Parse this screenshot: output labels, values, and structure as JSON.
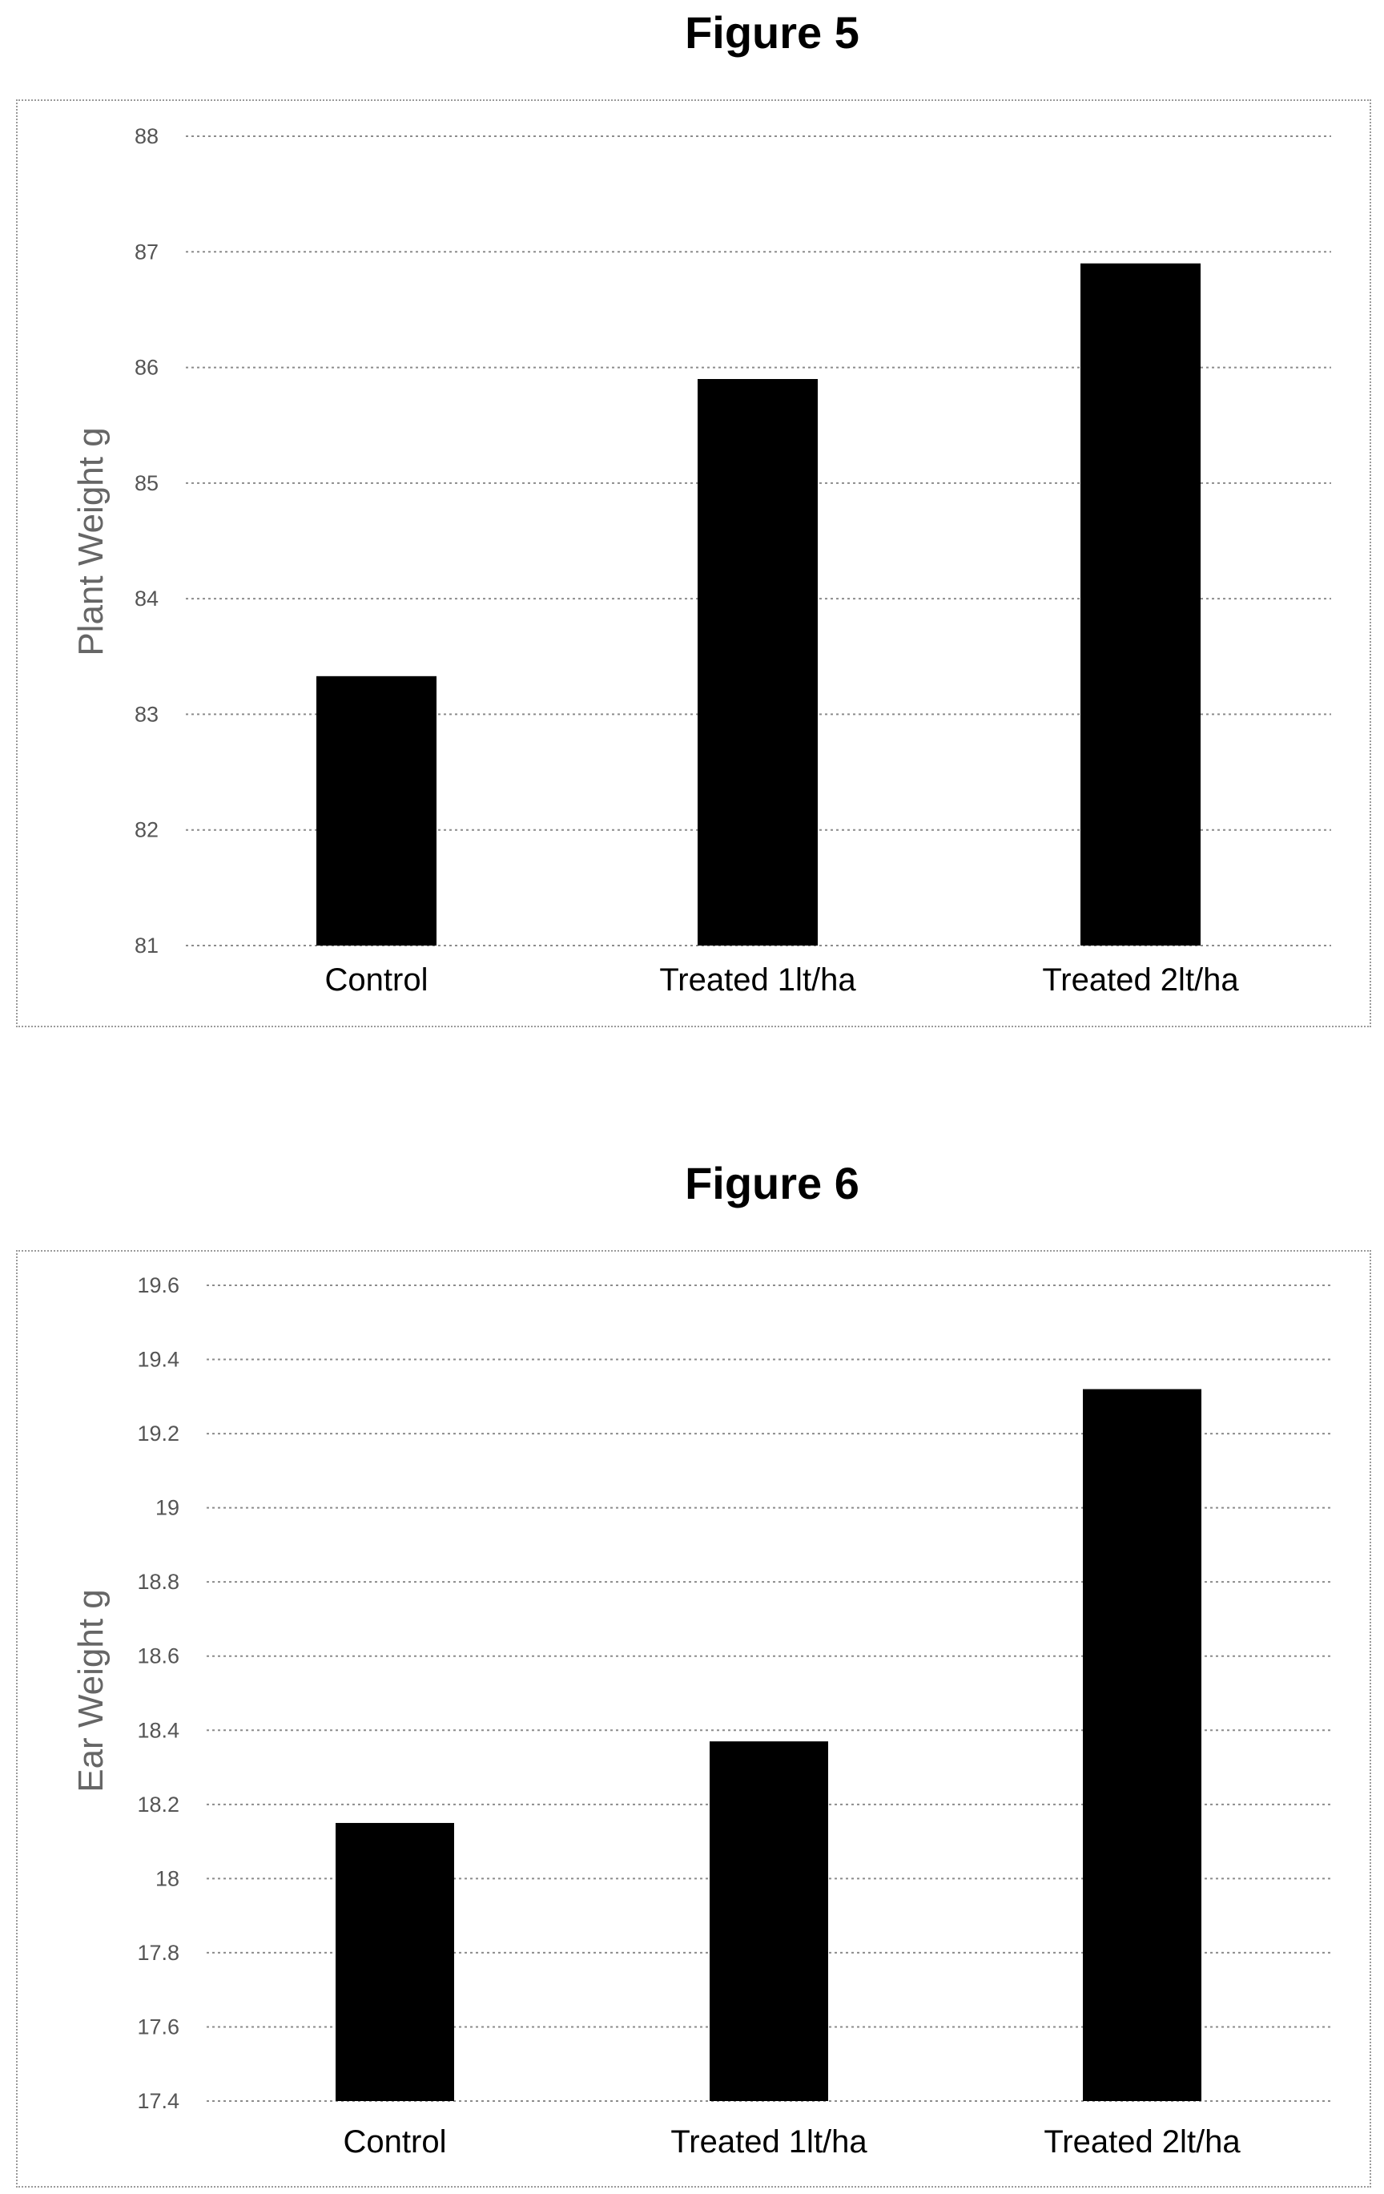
{
  "chart_data": [
    {
      "type": "bar",
      "title": "Figure 5",
      "xlabel": "",
      "ylabel": "Plant Weight g",
      "categories": [
        "Control",
        "Treated 1lt/ha",
        "Treated 2lt/ha"
      ],
      "values": [
        83.33,
        85.9,
        86.9
      ],
      "ylim": [
        81,
        88
      ],
      "yticks": [
        "81",
        "82",
        "83",
        "84",
        "85",
        "86",
        "87",
        "88"
      ],
      "grid": true,
      "legend": "none",
      "bar_color": "#000000"
    },
    {
      "type": "bar",
      "title": "Figure 6",
      "xlabel": "",
      "ylabel": "Ear Weight g",
      "categories": [
        "Control",
        "Treated 1lt/ha",
        "Treated 2lt/ha"
      ],
      "values": [
        18.15,
        18.37,
        19.32
      ],
      "ylim": [
        17.4,
        19.6
      ],
      "yticks": [
        "17.4",
        "17.6",
        "17.8",
        "18",
        "18.2",
        "18.4",
        "18.6",
        "18.8",
        "19",
        "19.2",
        "19.4",
        "19.6"
      ],
      "grid": true,
      "legend": "none",
      "bar_color": "#000000"
    }
  ]
}
